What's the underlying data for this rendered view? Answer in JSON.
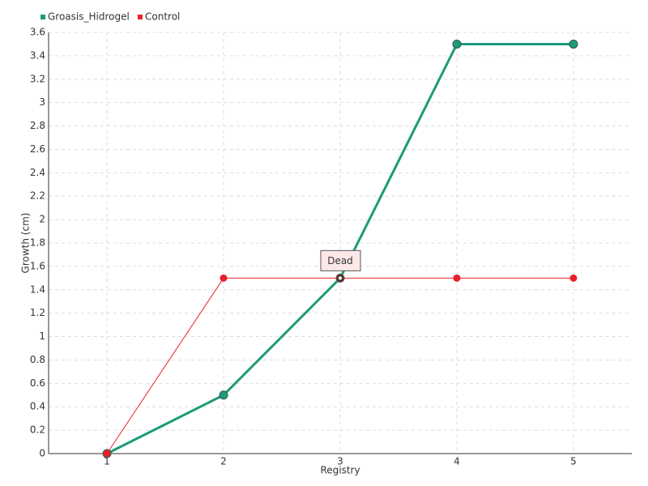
{
  "chart_data": {
    "type": "line",
    "x_label": "Registry",
    "y_label": "Growth (cm)",
    "x": [
      1,
      2,
      3,
      4,
      5
    ],
    "series": [
      {
        "name": "Groasis_Hidrogel",
        "color": "#1f9a7a",
        "values": [
          0,
          0.5,
          1.5,
          3.5,
          3.5
        ]
      },
      {
        "name": "Control",
        "color": "#e8202a",
        "values": [
          0,
          1.5,
          1.5,
          1.5,
          1.5
        ]
      }
    ],
    "annotation": {
      "text": "Dead",
      "x": 3,
      "y": 1.5
    },
    "xlim": [
      0.5,
      5.5
    ],
    "xticks": [
      1,
      2,
      3,
      4,
      5
    ],
    "ylim": [
      0,
      3.6
    ],
    "yticks": [
      0,
      0.2,
      0.4,
      0.6,
      0.8,
      1,
      1.2,
      1.4,
      1.6,
      1.8,
      2,
      2.2,
      2.4,
      2.6,
      2.8,
      3,
      3.2,
      3.4,
      3.6
    ],
    "grid": true,
    "legend": "top-left"
  }
}
